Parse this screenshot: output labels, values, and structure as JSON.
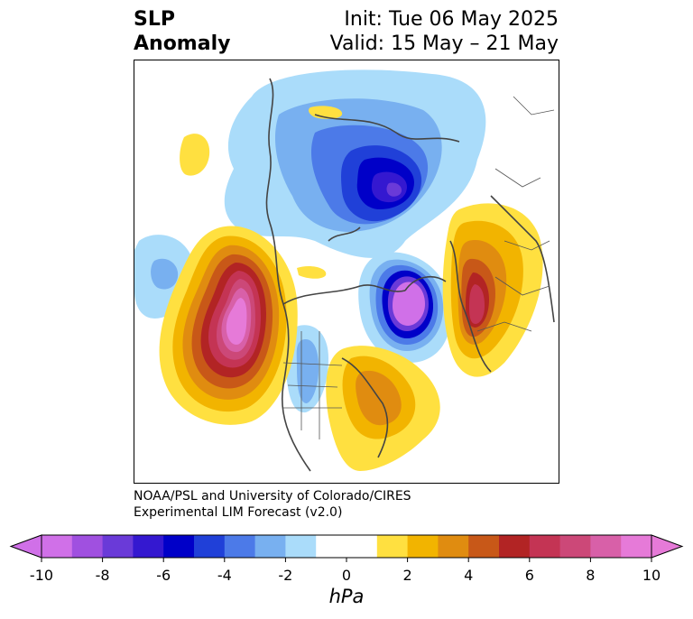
{
  "title": {
    "left_line1": "SLP",
    "left_line2": "Anomaly",
    "init": "Init: Tue 06 May 2025",
    "valid": "Valid: 15 May – 21 May"
  },
  "credit": {
    "line1": "NOAA/PSL and University of Colorado/CIRES",
    "line2": "Experimental LIM Forecast (v2.0)"
  },
  "colorbar": {
    "unit": "hPa",
    "ticks": [
      "-10",
      "-8",
      "-6",
      "-4",
      "-2",
      "0",
      "2",
      "4",
      "6",
      "8",
      "10"
    ],
    "under_color": "#d070e8",
    "over_color": "#e67ad8",
    "colors": [
      "#d070e8",
      "#a050e0",
      "#6a3ad8",
      "#3418d0",
      "#0000c8",
      "#2040d8",
      "#4c7ae8",
      "#78b0f0",
      "#aadcfa",
      "#ffffff",
      "#ffffff",
      "#ffe040",
      "#f2b400",
      "#e08c10",
      "#c85818",
      "#b22424",
      "#c43454",
      "#cc4878",
      "#d860a8",
      "#e67ad8"
    ]
  }
}
